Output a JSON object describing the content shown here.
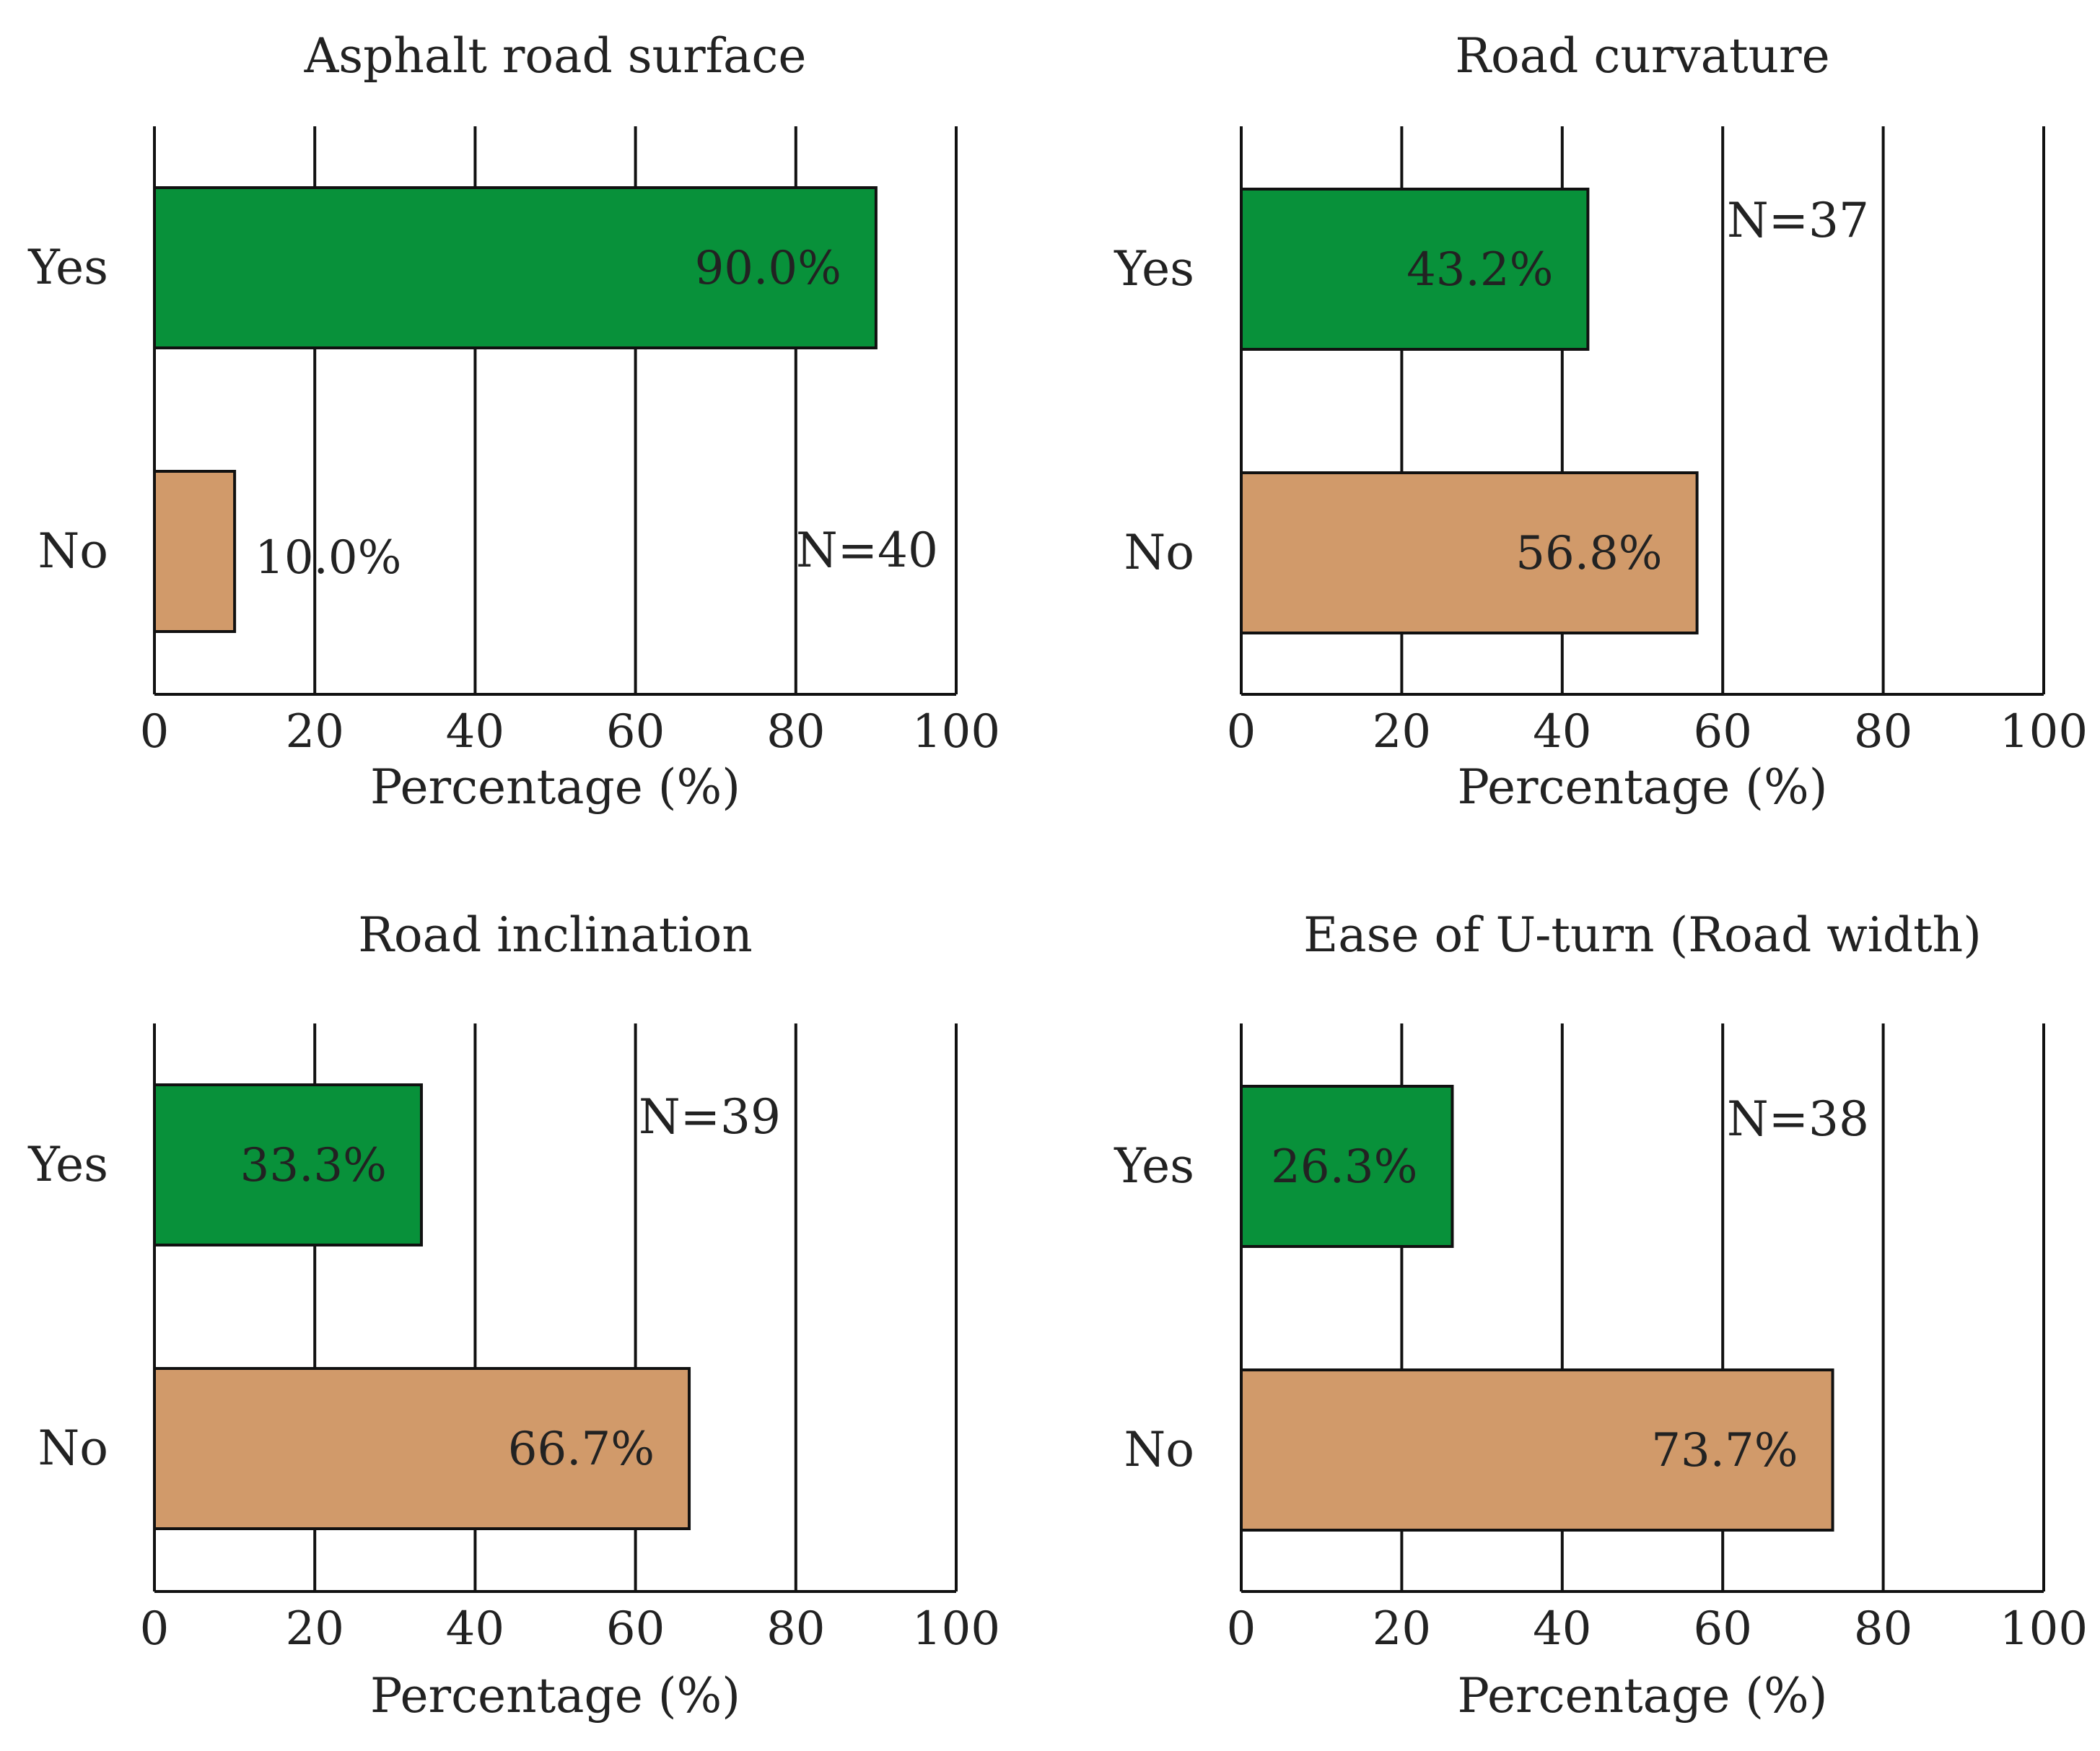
{
  "colors": {
    "yes": "#08913a",
    "no": "#d19a6a"
  },
  "chart_data": [
    {
      "type": "bar",
      "orientation": "horizontal",
      "title": "Asphalt road surface",
      "categories": [
        "Yes",
        "No"
      ],
      "values": [
        90.0,
        10.0
      ],
      "value_labels": [
        "90.0%",
        "10.0%"
      ],
      "n_label": "N=40",
      "xlabel": "Percentage (%)",
      "xlim": [
        0,
        100
      ],
      "xticks": [
        "0",
        "20",
        "40",
        "60",
        "80",
        "100"
      ],
      "grid": true
    },
    {
      "type": "bar",
      "orientation": "horizontal",
      "title": "Road curvature",
      "categories": [
        "Yes",
        "No"
      ],
      "values": [
        43.2,
        56.8
      ],
      "value_labels": [
        "43.2%",
        "56.8%"
      ],
      "n_label": "N=37",
      "xlabel": "Percentage (%)",
      "xlim": [
        0,
        100
      ],
      "xticks": [
        "0",
        "20",
        "40",
        "60",
        "80",
        "100"
      ],
      "grid": true
    },
    {
      "type": "bar",
      "orientation": "horizontal",
      "title": "Road inclination",
      "categories": [
        "Yes",
        "No"
      ],
      "values": [
        33.3,
        66.7
      ],
      "value_labels": [
        "33.3%",
        "66.7%"
      ],
      "n_label": "N=39",
      "xlabel": "Percentage (%)",
      "xlim": [
        0,
        100
      ],
      "xticks": [
        "0",
        "20",
        "40",
        "60",
        "80",
        "100"
      ],
      "grid": true
    },
    {
      "type": "bar",
      "orientation": "horizontal",
      "title": "Ease of U-turn (Road width)",
      "categories": [
        "Yes",
        "No"
      ],
      "values": [
        26.3,
        73.7
      ],
      "value_labels": [
        "26.3%",
        "73.7%"
      ],
      "n_label": "N=38",
      "xlabel": "Percentage (%)",
      "xlim": [
        0,
        100
      ],
      "xticks": [
        "0",
        "20",
        "40",
        "60",
        "80",
        "100"
      ],
      "grid": true
    }
  ]
}
